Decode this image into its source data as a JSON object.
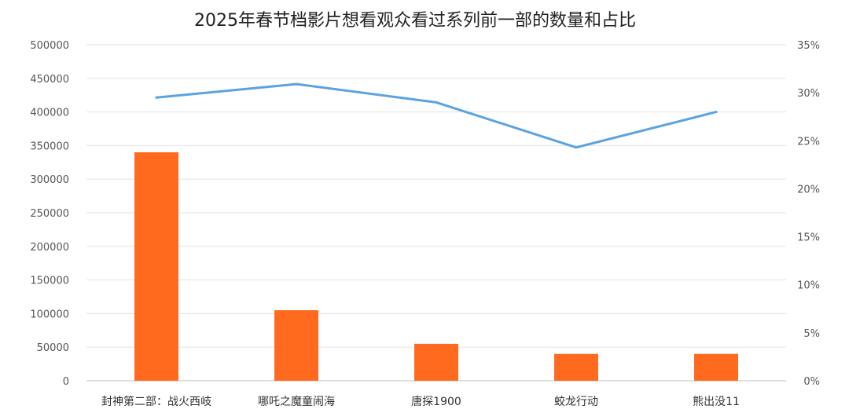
{
  "chart_data": {
    "type": "bar",
    "title": "2025年春节档影片想看观众看过系列前一部的数量和占比",
    "categories": [
      "封神第二部：战火西岐",
      "哪吒之魔童闹海",
      "唐探1900",
      "蛟龙行动",
      "熊出没11"
    ],
    "series": [
      {
        "type": "bar",
        "axis": "left",
        "values": [
          340000,
          105000,
          55000,
          40000,
          40000
        ],
        "color": "#FF6A1F"
      },
      {
        "type": "line",
        "axis": "right",
        "values": [
          29.5,
          30.9,
          29.0,
          24.3,
          28.0
        ],
        "color": "#5BA3E0"
      }
    ],
    "y_left": {
      "ylim": [
        0,
        500000
      ],
      "ticks": [
        "0",
        "50000",
        "100000",
        "150000",
        "200000",
        "250000",
        "300000",
        "350000",
        "400000",
        "450000",
        "500000"
      ]
    },
    "y_right": {
      "ylim": [
        0,
        35
      ],
      "ticks": [
        "0%",
        "5%",
        "10%",
        "15%",
        "20%",
        "25%",
        "30%",
        "35%"
      ]
    },
    "grid": true,
    "legend": "none"
  }
}
